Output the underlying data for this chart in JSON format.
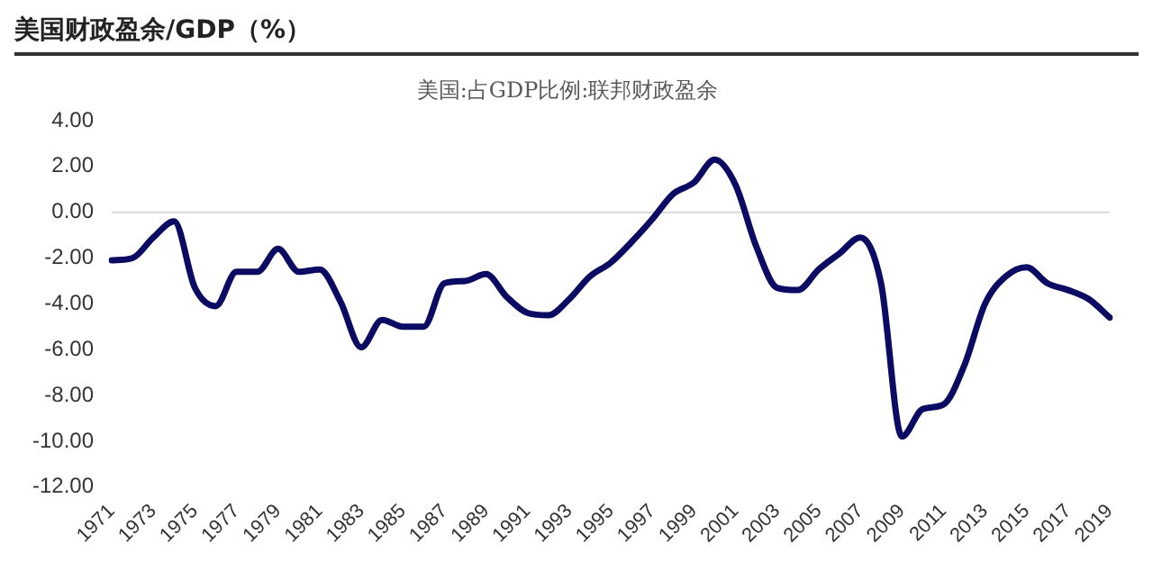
{
  "chart_data": {
    "type": "line",
    "title": "美国财政盈余/GDP（%）",
    "categories": [
      "1971",
      null,
      "1973",
      null,
      "1975",
      null,
      "1977",
      null,
      "1979",
      null,
      "1981",
      null,
      "1983",
      null,
      "1985",
      null,
      "1987",
      null,
      "1989",
      null,
      "1991",
      null,
      "1993",
      null,
      "1995",
      null,
      "1997",
      null,
      "1999",
      null,
      "2001",
      null,
      "2003",
      null,
      "2005",
      null,
      "2007",
      null,
      "2009",
      null,
      "2011",
      null,
      "2013",
      null,
      "2015",
      null,
      "2017",
      null,
      "2019"
    ],
    "series": [
      {
        "name": "美国:占GDP比例:联邦财政盈余",
        "color": "#0b0b63",
        "values": [
          -2.1,
          -2.0,
          -1.1,
          -0.4,
          -3.3,
          -4.1,
          -2.6,
          -2.6,
          -1.6,
          -2.6,
          -2.5,
          -3.9,
          -5.9,
          -4.7,
          -5.0,
          -5.0,
          -3.1,
          -3.0,
          -2.7,
          -3.7,
          -4.4,
          -4.5,
          -3.8,
          -2.8,
          -2.2,
          -1.3,
          -0.3,
          0.8,
          1.3,
          2.3,
          1.2,
          -1.5,
          -3.3,
          -3.4,
          -2.5,
          -1.8,
          -1.1,
          -3.1,
          -9.8,
          -8.6,
          -8.4,
          -6.7,
          -4.0,
          -2.8,
          -2.4,
          -3.1,
          -3.4,
          -3.8,
          -4.6
        ]
      }
    ],
    "ylim": [
      -12,
      4
    ],
    "yticks": [
      {
        "value": -12,
        "label": "-12.00"
      },
      {
        "value": -10,
        "label": "-10.00"
      },
      {
        "value": -8,
        "label": "-8.00"
      },
      {
        "value": -6,
        "label": "-6.00"
      },
      {
        "value": -4,
        "label": "-4.00"
      },
      {
        "value": -2,
        "label": "-2.00"
      },
      {
        "value": 0,
        "label": "0.00"
      },
      {
        "value": 2,
        "label": "2.00"
      },
      {
        "value": 4,
        "label": "4.00"
      }
    ],
    "ref_lines": [
      {
        "axis": "y",
        "value": 0,
        "color": "#d9d9d9"
      }
    ],
    "grid": false,
    "legend": "top",
    "marker": "none",
    "line_style": "solid"
  }
}
